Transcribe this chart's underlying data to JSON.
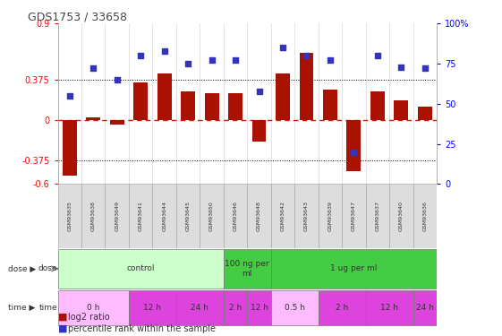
{
  "title": "GDS1753 / 33658",
  "samples": [
    "GSM93635",
    "GSM93638",
    "GSM93649",
    "GSM93641",
    "GSM93644",
    "GSM93645",
    "GSM93650",
    "GSM93646",
    "GSM93648",
    "GSM93642",
    "GSM93643",
    "GSM93639",
    "GSM93647",
    "GSM93637",
    "GSM93640",
    "GSM93636"
  ],
  "log2_ratio": [
    -0.52,
    0.02,
    -0.04,
    0.35,
    0.43,
    0.27,
    0.25,
    0.25,
    -0.2,
    0.43,
    0.63,
    0.28,
    -0.48,
    0.27,
    0.18,
    0.12
  ],
  "percentile": [
    55,
    72,
    65,
    80,
    83,
    75,
    77,
    77,
    58,
    85,
    80,
    77,
    20,
    80,
    73,
    72
  ],
  "bar_color": "#aa1100",
  "dot_color": "#3333bb",
  "ylim_left": [
    -0.6,
    0.9
  ],
  "ylim_right": [
    0,
    100
  ],
  "yticks_left": [
    -0.6,
    -0.375,
    0,
    0.375,
    0.9
  ],
  "yticks_right": [
    0,
    25,
    50,
    75,
    100
  ],
  "hlines": [
    0.375,
    -0.375
  ],
  "hline_zero_color": "#cc2200",
  "hline_dotted_color": "#000000",
  "dose_rows": [
    {
      "label": "control",
      "start": 0,
      "end": 6,
      "color": "#ccffcc"
    },
    {
      "label": "100 ng per\nml",
      "start": 7,
      "end": 8,
      "color": "#44cc44"
    },
    {
      "label": "1 ug per ml",
      "start": 9,
      "end": 15,
      "color": "#44cc44"
    }
  ],
  "time_rows": [
    {
      "label": "0 h",
      "start": 0,
      "end": 2,
      "color": "#ffbbff"
    },
    {
      "label": "12 h",
      "start": 3,
      "end": 4,
      "color": "#dd44dd"
    },
    {
      "label": "24 h",
      "start": 5,
      "end": 6,
      "color": "#dd44dd"
    },
    {
      "label": "2 h",
      "start": 7,
      "end": 7,
      "color": "#dd44dd"
    },
    {
      "label": "12 h",
      "start": 8,
      "end": 8,
      "color": "#dd44dd"
    },
    {
      "label": "0.5 h",
      "start": 9,
      "end": 10,
      "color": "#ffbbff"
    },
    {
      "label": "2 h",
      "start": 11,
      "end": 12,
      "color": "#dd44dd"
    },
    {
      "label": "12 h",
      "start": 13,
      "end": 14,
      "color": "#dd44dd"
    },
    {
      "label": "24 h",
      "start": 15,
      "end": 15,
      "color": "#dd44dd"
    }
  ],
  "bg_color": "#ffffff"
}
